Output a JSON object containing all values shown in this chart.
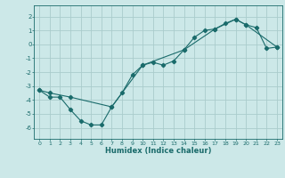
{
  "title": "",
  "xlabel": "Humidex (Indice chaleur)",
  "background_color": "#cce8e8",
  "grid_color": "#aacccc",
  "line_color": "#1a6b6b",
  "xlim": [
    -0.5,
    23.5
  ],
  "ylim": [
    -6.8,
    2.8
  ],
  "yticks": [
    2,
    1,
    0,
    -1,
    -2,
    -3,
    -4,
    -5,
    -6
  ],
  "xticks": [
    0,
    1,
    2,
    3,
    4,
    5,
    6,
    7,
    8,
    9,
    10,
    11,
    12,
    13,
    14,
    15,
    16,
    17,
    18,
    19,
    20,
    21,
    22,
    23
  ],
  "line1_x": [
    0,
    1,
    2,
    3,
    4,
    5,
    6,
    7,
    8,
    9,
    10,
    11,
    12,
    13,
    14,
    15,
    16,
    17,
    18,
    19,
    20,
    21,
    22,
    23
  ],
  "line1_y": [
    -3.3,
    -3.8,
    -3.8,
    -4.7,
    -5.5,
    -5.8,
    -5.8,
    -4.5,
    -3.5,
    -2.2,
    -1.5,
    -1.3,
    -1.5,
    -1.2,
    -0.4,
    0.5,
    1.0,
    1.1,
    1.5,
    1.8,
    1.4,
    1.2,
    -0.3,
    -0.2
  ],
  "line2_x": [
    0,
    1,
    3,
    7,
    10,
    14,
    17,
    19,
    20,
    23
  ],
  "line2_y": [
    -3.3,
    -3.5,
    -3.8,
    -4.5,
    -1.5,
    -0.4,
    1.1,
    1.8,
    1.4,
    -0.2
  ]
}
